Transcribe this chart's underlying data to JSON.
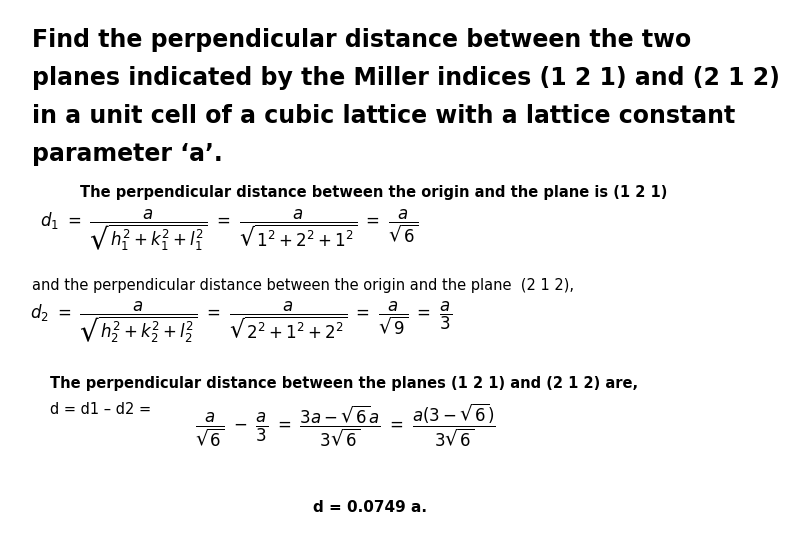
{
  "background_color": "#ffffff",
  "title_lines": [
    "Find the perpendicular distance between the two",
    "planes indicated by the Miller indices (1 2 1) and (2 1 2)",
    "in a unit cell of a cubic lattice with a lattice constant",
    "parameter ‘a’."
  ],
  "subtitle1": "The perpendicular distance between the origin and the plane is (1 2 1)",
  "formula1": "$d_1 \\ = \\ \\dfrac{a}{\\sqrt{h_1^2 + k_1^2 + l_1^2}} \\ = \\ \\dfrac{a}{\\sqrt{1^2 + 2^2 + 1^2}} \\ = \\ \\dfrac{a}{\\sqrt{6}}$",
  "subtitle2": "and the perpendicular distance between the origin and the plane  (2 1 2),",
  "formula2": "$d_2 \\ = \\ \\dfrac{a}{\\sqrt{h_2^2 + k_2^2 + l_2^2}} \\ = \\ \\dfrac{a}{\\sqrt{2^2 + 1^2 + 2^2}} \\ = \\ \\dfrac{a}{\\sqrt{9}} \\ = \\ \\dfrac{a}{3}$",
  "subtitle3": "The perpendicular distance between the planes (1 2 1) and (2 1 2) are,",
  "formula3_text": "d = d1 – d2 = ",
  "formula3_math": "$\\dfrac{a}{\\sqrt{6}} \\ - \\ \\dfrac{a}{3} \\ = \\ \\dfrac{3a - \\sqrt{6}a}{3\\sqrt{6}} \\ = \\ \\dfrac{a(3 - \\sqrt{6})}{3\\sqrt{6}}$",
  "final": "d = 0.0749 a.",
  "title_fontsize": 17,
  "subtitle_fontsize": 10.5,
  "formula_fontsize": 12,
  "final_fontsize": 11
}
